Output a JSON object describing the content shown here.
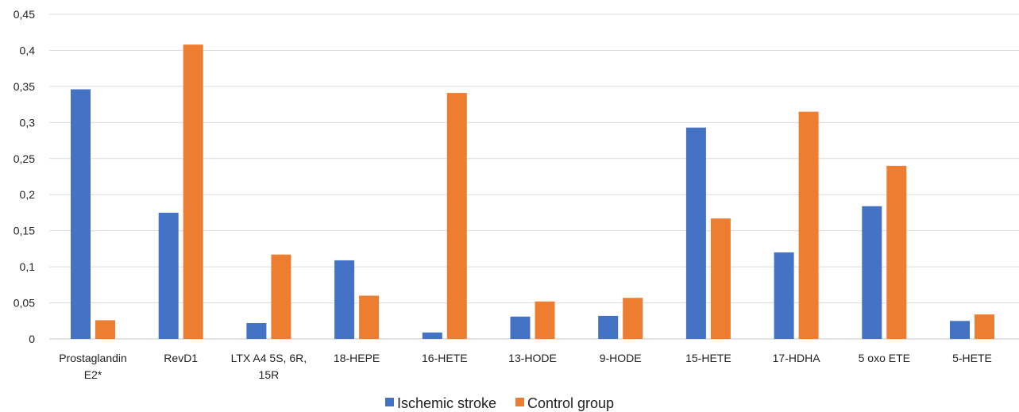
{
  "chart_data": {
    "type": "bar",
    "categories": [
      [
        "Prostaglandin",
        "E2*"
      ],
      [
        "RevD1"
      ],
      [
        "LTX A4 5S, 6R,",
        "15R"
      ],
      [
        "18-HEPE"
      ],
      [
        "16-HETE"
      ],
      [
        "13-HODE"
      ],
      [
        "9-HODE"
      ],
      [
        "15-HETE"
      ],
      [
        "17-HDHA"
      ],
      [
        "5 oxo ETE"
      ],
      [
        "5-HETE"
      ]
    ],
    "series": [
      {
        "name": "Ischemic stroke",
        "color": "#4472C4",
        "values": [
          0.346,
          0.175,
          0.022,
          0.109,
          0.009,
          0.031,
          0.032,
          0.293,
          0.12,
          0.184,
          0.025
        ]
      },
      {
        "name": "Control group",
        "color": "#ED7D31",
        "values": [
          0.026,
          0.408,
          0.117,
          0.06,
          0.341,
          0.052,
          0.057,
          0.167,
          0.315,
          0.24,
          0.034
        ]
      }
    ],
    "ylim": [
      0,
      0.45
    ],
    "yticks": [
      "0",
      "0,05",
      "0,1",
      "0,15",
      "0,2",
      "0,25",
      "0,3",
      "0,35",
      "0,4",
      "0,45"
    ],
    "grid": true,
    "legend_position": "bottom"
  }
}
